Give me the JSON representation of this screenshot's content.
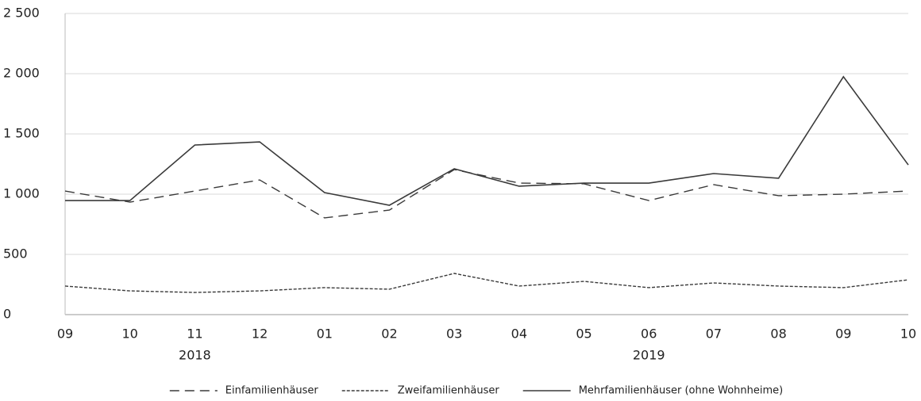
{
  "chart_data": {
    "type": "line",
    "categories": [
      "09",
      "10",
      "11",
      "12",
      "01",
      "02",
      "03",
      "04",
      "05",
      "06",
      "07",
      "08",
      "09",
      "10"
    ],
    "category_groups": [
      {
        "label": "2018",
        "start": 0,
        "end": 3
      },
      {
        "label": "2019",
        "start": 4,
        "end": 13
      }
    ],
    "series": [
      {
        "name": "Einfamilienhäuser",
        "color": "#3a3a3a",
        "line_style": "dashed",
        "values": [
          1026,
          934,
          1026,
          1118,
          803,
          868,
          1204,
          1092,
          1086,
          947,
          1079,
          987,
          1000,
          1026
        ]
      },
      {
        "name": "Zweifamilienhäuser",
        "color": "#3a3a3a",
        "line_style": "dotted",
        "values": [
          237,
          197,
          184,
          197,
          224,
          211,
          342,
          237,
          276,
          224,
          263,
          237,
          224,
          289
        ]
      },
      {
        "name": "Mehrfamilienhäuser (ohne Wohnheime)",
        "color": "#3a3a3a",
        "line_style": "solid",
        "values": [
          947,
          947,
          1408,
          1434,
          1013,
          908,
          1211,
          1066,
          1092,
          1092,
          1171,
          1132,
          1975,
          1243
        ]
      }
    ],
    "ylim": [
      0,
      2500
    ],
    "yticks": [
      0,
      500,
      {
        "value": 1000,
        "label": "1 000"
      },
      {
        "value": 1500,
        "label": "1 500"
      },
      {
        "value": 2000,
        "label": "2 000"
      },
      {
        "value": 2500,
        "label": "2 500"
      }
    ],
    "grid": true,
    "legend": "bottom"
  }
}
